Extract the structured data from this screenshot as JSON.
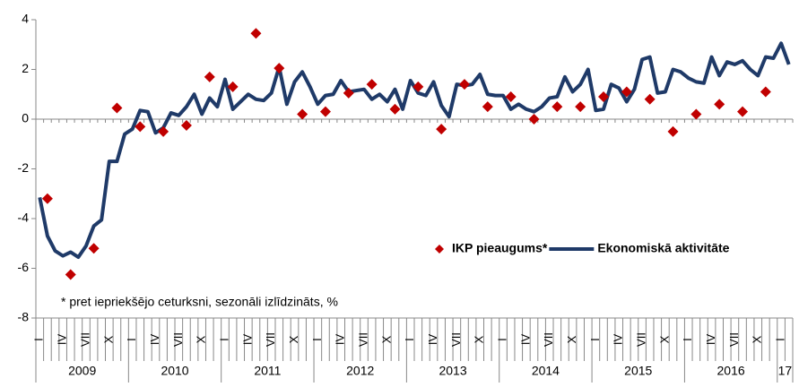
{
  "chart_data": {
    "type": "line",
    "categories": [
      "I",
      null,
      null,
      "IV",
      null,
      null,
      "VII",
      null,
      null,
      "X",
      null,
      null,
      "I",
      null,
      null,
      "IV",
      null,
      null,
      "VII",
      null,
      null,
      "X",
      null,
      null,
      "I",
      null,
      null,
      "IV",
      null,
      null,
      "VII",
      null,
      null,
      "X",
      null,
      null,
      "I",
      null,
      null,
      "IV",
      null,
      null,
      "VII",
      null,
      null,
      "X",
      null,
      null,
      "I",
      null,
      null,
      "IV",
      null,
      null,
      "VII",
      null,
      null,
      "X",
      null,
      null,
      "I",
      null,
      null,
      "IV",
      null,
      null,
      "VII",
      null,
      null,
      "X",
      null,
      null,
      "I",
      null,
      null,
      "IV",
      null,
      null,
      "VII",
      null,
      null,
      "X",
      null,
      null,
      "I",
      null,
      null,
      "IV",
      null,
      null,
      "VII",
      null,
      null,
      "X",
      null,
      null,
      "I",
      null
    ],
    "years": [
      "2009",
      "2010",
      "2011",
      "2012",
      "2013",
      "2014",
      "2015",
      "2016",
      "17"
    ],
    "series": [
      {
        "name": "IKP pieaugums*",
        "color": "#c00000",
        "marker": "diamond",
        "values": [
          null,
          -3.2,
          null,
          null,
          -6.25,
          null,
          null,
          -5.2,
          null,
          null,
          0.45,
          null,
          null,
          -0.3,
          null,
          null,
          -0.5,
          null,
          null,
          -0.25,
          null,
          null,
          1.7,
          null,
          null,
          1.3,
          null,
          null,
          3.45,
          null,
          null,
          2.05,
          null,
          null,
          0.2,
          null,
          null,
          0.3,
          null,
          null,
          1.05,
          null,
          null,
          1.4,
          null,
          null,
          0.4,
          null,
          null,
          1.3,
          null,
          null,
          -0.4,
          null,
          null,
          1.4,
          null,
          null,
          0.5,
          null,
          null,
          0.9,
          null,
          null,
          0.0,
          null,
          null,
          0.5,
          null,
          null,
          0.5,
          null,
          null,
          0.9,
          null,
          null,
          1.1,
          null,
          null,
          0.8,
          null,
          null,
          -0.5,
          null,
          null,
          0.2,
          null,
          null,
          0.6,
          null,
          null,
          0.3,
          null,
          null,
          1.1,
          null,
          null,
          null
        ]
      },
      {
        "name": "Ekonomiskā aktivitāte",
        "color": "#1f3a68",
        "marker": "line",
        "values": [
          -3.15,
          -4.7,
          -5.3,
          -5.5,
          -5.35,
          -5.55,
          -5.1,
          -4.3,
          -4.05,
          -1.7,
          -1.7,
          -0.6,
          -0.4,
          0.35,
          0.3,
          -0.55,
          -0.35,
          0.25,
          0.15,
          0.5,
          1.0,
          0.2,
          0.85,
          0.5,
          1.6,
          0.4,
          0.7,
          1.0,
          0.8,
          0.75,
          1.05,
          2.1,
          0.6,
          1.5,
          1.9,
          1.3,
          0.6,
          0.95,
          1.0,
          1.55,
          1.1,
          1.15,
          1.2,
          0.8,
          1.0,
          0.7,
          1.2,
          0.4,
          1.55,
          1.05,
          0.95,
          1.5,
          0.55,
          0.1,
          1.4,
          1.35,
          1.4,
          1.8,
          1.0,
          0.95,
          0.95,
          0.4,
          0.6,
          0.4,
          0.3,
          0.5,
          0.85,
          0.9,
          1.7,
          1.1,
          1.4,
          2.0,
          0.35,
          0.4,
          1.4,
          1.25,
          0.7,
          1.2,
          2.4,
          2.5,
          1.05,
          1.1,
          2.0,
          1.9,
          1.65,
          1.5,
          1.45,
          2.5,
          1.75,
          2.3,
          2.2,
          2.35,
          2.0,
          1.75,
          2.5,
          2.45,
          3.05,
          2.2
        ]
      }
    ],
    "annotation": "* pret iepriekšējo ceturksni, sezonāli izlīdzināts, %",
    "ylim": [
      -8,
      4
    ],
    "yticks": [
      -8,
      -6,
      -4,
      -2,
      0,
      2,
      4
    ],
    "grid": false
  }
}
